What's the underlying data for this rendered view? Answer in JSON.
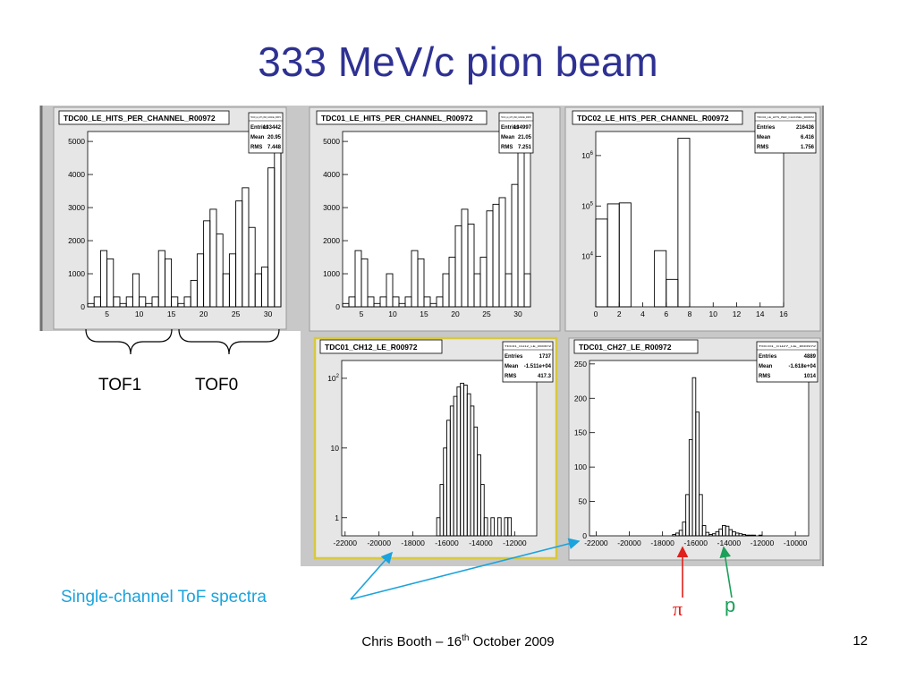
{
  "slide": {
    "title": "333 MeV/c pion beam",
    "footer_author": "Chris Booth – 16",
    "footer_sup": "th",
    "footer_date": " October  2009",
    "page_number": "12"
  },
  "annotations": {
    "tof1": "TOF1",
    "tof0": "TOF0",
    "spectra_caption": "Single-channel ToF spectra",
    "pi_label": "π",
    "p_label": "p",
    "pi_color": "#e0201c",
    "p_color": "#1ca05a",
    "caption_color": "#1aa3dd"
  },
  "chart_data": [
    {
      "type": "bar",
      "title": "TDC00_LE_HITS_PER_CHANNEL_R00972",
      "stats": {
        "id_text": "TDC00_LE_HITS_PER_CHANNEL_R00972",
        "rows": [
          [
            "Entries",
            "133442"
          ],
          [
            "Mean",
            "20.95"
          ],
          [
            "RMS",
            "7.448"
          ]
        ]
      },
      "xlim": [
        2,
        32
      ],
      "ylim": [
        0,
        5300
      ],
      "log_y": false,
      "x_ticks": [
        5,
        10,
        15,
        20,
        25,
        30
      ],
      "x_tick_labels": [
        "5",
        "10",
        "15",
        "20",
        "25",
        "30"
      ],
      "y_ticks": [
        0,
        1000,
        2000,
        3000,
        4000,
        5000
      ],
      "y_tick_labels": [
        "0",
        "1000",
        "2000",
        "3000",
        "4000",
        "5000"
      ],
      "bin_edges": [
        2,
        3,
        4,
        5,
        6,
        7,
        8,
        9,
        10,
        11,
        12,
        13,
        14,
        15,
        16,
        17,
        18,
        19,
        20,
        21,
        22,
        23,
        24,
        25,
        26,
        27,
        28,
        29,
        30,
        31,
        32
      ],
      "values": [
        100,
        300,
        1700,
        1450,
        300,
        100,
        300,
        1000,
        300,
        100,
        300,
        1700,
        1450,
        300,
        100,
        300,
        800,
        1600,
        2600,
        2950,
        2200,
        1000,
        1600,
        3200,
        3600,
        2400,
        1000,
        1200,
        4200,
        5000
      ]
    },
    {
      "type": "bar",
      "title": "TDC01_LE_HITS_PER_CHANNEL_R00972",
      "stats": {
        "id_text": "TDC01_LE_HITS_PER_CHANNEL_R00972",
        "rows": [
          [
            "Entries",
            "134997"
          ],
          [
            "Mean",
            "21.05"
          ],
          [
            "RMS",
            "7.251"
          ]
        ]
      },
      "xlim": [
        2,
        32
      ],
      "ylim": [
        0,
        5300
      ],
      "log_y": false,
      "x_ticks": [
        5,
        10,
        15,
        20,
        25,
        30
      ],
      "x_tick_labels": [
        "5",
        "10",
        "15",
        "20",
        "25",
        "30"
      ],
      "y_ticks": [
        0,
        1000,
        2000,
        3000,
        4000,
        5000
      ],
      "y_tick_labels": [
        "0",
        "1000",
        "2000",
        "3000",
        "4000",
        "5000"
      ],
      "bin_edges": [
        2,
        3,
        4,
        5,
        6,
        7,
        8,
        9,
        10,
        11,
        12,
        13,
        14,
        15,
        16,
        17,
        18,
        19,
        20,
        21,
        22,
        23,
        24,
        25,
        26,
        27,
        28,
        29,
        30,
        31,
        32
      ],
      "values": [
        100,
        300,
        1700,
        1450,
        300,
        100,
        300,
        1000,
        300,
        100,
        300,
        1700,
        1450,
        300,
        100,
        300,
        1000,
        1500,
        2450,
        2950,
        2500,
        1000,
        1500,
        2900,
        3100,
        3300,
        1000,
        3700,
        5000,
        1000
      ]
    },
    {
      "type": "bar",
      "title": "TDC02_LE_HITS_PER_CHANNEL_R00972",
      "stats": {
        "id_text": "TDC02_LE_HITS_PER_CHANNEL_R00972",
        "rows": [
          [
            "Entries",
            "216436"
          ],
          [
            "Mean",
            "6.416"
          ],
          [
            "RMS",
            "1.756"
          ]
        ]
      },
      "xlim": [
        0,
        16
      ],
      "ylim": [
        1000,
        3000000
      ],
      "log_y": true,
      "x_ticks": [
        0,
        2,
        4,
        6,
        8,
        10,
        12,
        14,
        16
      ],
      "x_tick_labels": [
        "0",
        "2",
        "4",
        "6",
        "8",
        "10",
        "12",
        "14",
        "16"
      ],
      "y_ticks": [
        10000,
        100000,
        1000000
      ],
      "y_tick_labels": [
        "10^4",
        "10^5",
        "10^6"
      ],
      "bin_edges": [
        0,
        1,
        2,
        3,
        4,
        5,
        6,
        7,
        8,
        9,
        10,
        11,
        12,
        13,
        14,
        15,
        16
      ],
      "values": [
        55000,
        110000,
        115000,
        0,
        0,
        13000,
        3500,
        2200000,
        0,
        0,
        0,
        0,
        0,
        0,
        0,
        0
      ]
    },
    {
      "type": "bar",
      "title": "TDC01_CH12_LE_R00972",
      "stats": {
        "id_text": "TDC01_CH12_LE_R00972",
        "rows": [
          [
            "Entries",
            "1737"
          ],
          [
            "Mean",
            "-1.511e+04"
          ],
          [
            "RMS",
            "417.3"
          ]
        ]
      },
      "xlim": [
        -22200,
        -10700
      ],
      "ylim": [
        0.55,
        180
      ],
      "log_y": true,
      "x_ticks": [
        -22000,
        -20000,
        -18000,
        -16000,
        -14000,
        -12000
      ],
      "x_tick_labels": [
        "-22000",
        "-20000",
        "-18000",
        "-16000",
        "-14000",
        "-12000"
      ],
      "y_ticks": [
        1,
        10,
        100
      ],
      "y_tick_labels": [
        "1",
        "10",
        "10^2"
      ],
      "bin_edges": [
        -16600,
        -16400,
        -16200,
        -16000,
        -15800,
        -15600,
        -15400,
        -15200,
        -15000,
        -14800,
        -14600,
        -14400,
        -14200,
        -14000,
        -13800,
        -13600,
        -13400,
        -13200,
        -13000,
        -12800,
        -12600,
        -12400,
        -12200,
        -12000
      ],
      "values": [
        1,
        3,
        10,
        25,
        40,
        55,
        75,
        85,
        80,
        60,
        40,
        20,
        8,
        3,
        1,
        0,
        1,
        0,
        1,
        0,
        1,
        1,
        0
      ]
    },
    {
      "type": "bar",
      "title": "TDC01_CH27_LE_R00972",
      "stats": {
        "id_text": "TDC01_CH27_LE_R00972",
        "rows": [
          [
            "Entries",
            "4889"
          ],
          [
            "Mean",
            "-1.618e+04"
          ],
          [
            "RMS",
            "1014"
          ]
        ]
      },
      "xlim": [
        -22400,
        -9200
      ],
      "ylim": [
        0,
        255
      ],
      "log_y": false,
      "x_ticks": [
        -22000,
        -20000,
        -18000,
        -16000,
        -14000,
        -12000,
        -10000
      ],
      "x_tick_labels": [
        "-22000",
        "-20000",
        "-18000",
        "-16000",
        "-14000",
        "-12000",
        "-10000"
      ],
      "y_ticks": [
        0,
        50,
        100,
        150,
        200,
        250
      ],
      "y_tick_labels": [
        "0",
        "50",
        "100",
        "150",
        "200",
        "250"
      ],
      "bin_edges": [
        -17400,
        -17200,
        -17000,
        -16800,
        -16600,
        -16400,
        -16200,
        -16000,
        -15800,
        -15600,
        -15400,
        -15200,
        -15000,
        -14800,
        -14600,
        -14400,
        -14200,
        -14000,
        -13800,
        -13600,
        -13400,
        -13200,
        -13000,
        -12800,
        -12600,
        -12400,
        -12200,
        -12000
      ],
      "values": [
        2,
        4,
        8,
        20,
        60,
        140,
        230,
        180,
        60,
        15,
        5,
        2,
        3,
        6,
        10,
        15,
        14,
        9,
        6,
        4,
        3,
        2,
        1,
        1,
        1,
        0,
        1
      ]
    }
  ]
}
